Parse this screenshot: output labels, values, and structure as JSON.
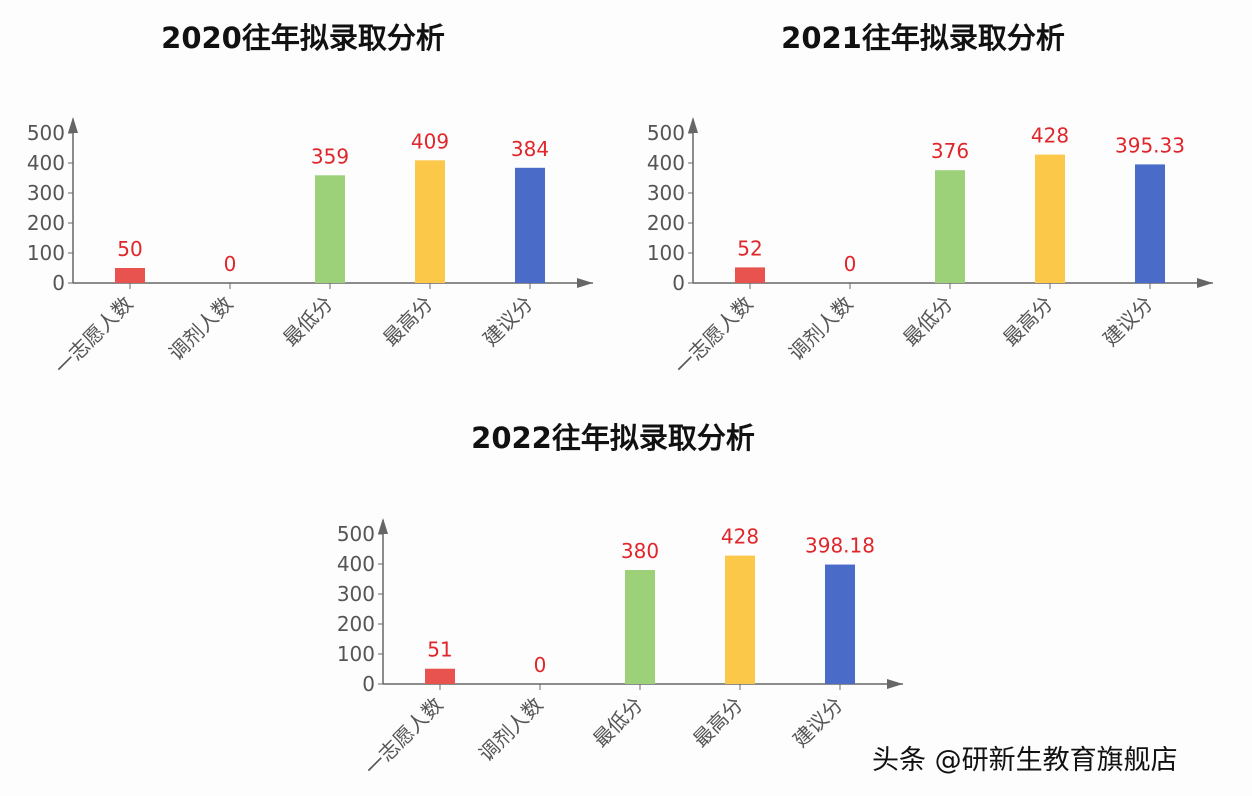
{
  "chart_data": [
    {
      "type": "bar",
      "title": "2020往年拟录取分析",
      "categories": [
        "一志愿人数",
        "调剂人数",
        "最低分",
        "最高分",
        "建议分"
      ],
      "values": [
        50,
        0,
        359,
        409,
        384
      ],
      "value_labels": [
        "50",
        "0",
        "359",
        "409",
        "384"
      ],
      "yticks": [
        0,
        100,
        200,
        300,
        400,
        500
      ],
      "ylim": [
        0,
        500
      ],
      "grid": false,
      "colors": [
        "#e8534f",
        "#e8534f",
        "#9cd17a",
        "#fcc84a",
        "#4a6bc8"
      ],
      "label_color": "#e0262a"
    },
    {
      "type": "bar",
      "title": "2021往年拟录取分析",
      "categories": [
        "一志愿人数",
        "调剂人数",
        "最低分",
        "最高分",
        "建议分"
      ],
      "values": [
        52,
        0,
        376,
        428,
        395.33
      ],
      "value_labels": [
        "52",
        "0",
        "376",
        "428",
        "395.33"
      ],
      "yticks": [
        0,
        100,
        200,
        300,
        400,
        500
      ],
      "ylim": [
        0,
        500
      ],
      "grid": false,
      "colors": [
        "#e8534f",
        "#e8534f",
        "#9cd17a",
        "#fcc84a",
        "#4a6bc8"
      ],
      "label_color": "#e0262a"
    },
    {
      "type": "bar",
      "title": "2022往年拟录取分析",
      "categories": [
        "一志愿人数",
        "调剂人数",
        "最低分",
        "最高分",
        "建议分"
      ],
      "values": [
        51,
        0,
        380,
        428,
        398.18
      ],
      "value_labels": [
        "51",
        "0",
        "380",
        "428",
        "398.18"
      ],
      "yticks": [
        0,
        100,
        200,
        300,
        400,
        500
      ],
      "ylim": [
        0,
        500
      ],
      "grid": false,
      "colors": [
        "#e8534f",
        "#e8534f",
        "#9cd17a",
        "#fcc84a",
        "#4a6bc8"
      ],
      "label_color": "#e0262a"
    }
  ],
  "watermark": "头条 @研新生教育旗舰店"
}
